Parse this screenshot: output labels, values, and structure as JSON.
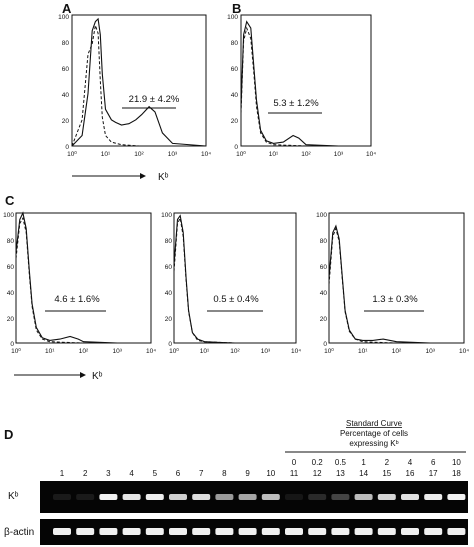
{
  "figure": {
    "panel_A": {
      "letter": "A",
      "y_ticks": [
        "100",
        "80",
        "60",
        "40",
        "20",
        "0"
      ],
      "x_ticks": [
        "10⁰",
        "10¹",
        "10²",
        "10³",
        "10⁴"
      ],
      "gate_label": "21.9 ± 4.2%",
      "axis_label": "Kᵇ"
    },
    "panel_B": {
      "letter": "B",
      "y_ticks": [
        "100",
        "80",
        "60",
        "40",
        "20",
        "0"
      ],
      "x_ticks": [
        "10⁰",
        "10¹",
        "10²",
        "10³",
        "10⁴"
      ],
      "gate_label": "5.3 ± 1.2%"
    },
    "panel_C": {
      "letter": "C",
      "axis_label": "Kᵇ",
      "histograms": [
        {
          "y_ticks": [
            "100",
            "80",
            "60",
            "40",
            "20",
            "0"
          ],
          "x_ticks": [
            "10⁰",
            "10¹",
            "10²",
            "10³",
            "10⁴"
          ],
          "gate_label": "4.6 ± 1.6%"
        },
        {
          "y_ticks": [
            "100",
            "80",
            "60",
            "40",
            "20",
            "0"
          ],
          "x_ticks": [
            "10⁰",
            "10¹",
            "10²",
            "10³",
            "10⁴"
          ],
          "gate_label": "0.5 ± 0.4%"
        },
        {
          "y_ticks": [
            "100",
            "80",
            "60",
            "40",
            "20",
            "0"
          ],
          "x_ticks": [
            "10⁰",
            "10¹",
            "10²",
            "10³",
            "10⁴"
          ],
          "gate_label": "1.3 ± 0.3%"
        }
      ]
    },
    "panel_D": {
      "letter": "D",
      "standard_curve_title": "Standard Curve",
      "standard_curve_sub1": "Percentage of cells",
      "standard_curve_sub2": "expressing Kᵇ",
      "percentages": [
        "0",
        "0.2",
        "0.5",
        "1",
        "2",
        "4",
        "6",
        "10"
      ],
      "lanes": [
        "1",
        "2",
        "3",
        "4",
        "5",
        "6",
        "7",
        "8",
        "9",
        "10",
        "11",
        "12",
        "13",
        "14",
        "15",
        "16",
        "17",
        "18"
      ],
      "kb_row_label": "Kᵇ",
      "actin_row_label": "β-actin"
    }
  },
  "chart_data": [
    {
      "type": "area",
      "panel": "A",
      "x_scale": "log",
      "xlim": [
        1,
        10000
      ],
      "ylim": [
        0,
        100
      ],
      "series": [
        {
          "style": "solid",
          "x": [
            1,
            2,
            3,
            4,
            5,
            6,
            7,
            8,
            10,
            15,
            20,
            30,
            50,
            80,
            120,
            200,
            300,
            500,
            1000,
            10000
          ],
          "y": [
            0,
            8,
            40,
            88,
            95,
            97,
            85,
            55,
            28,
            20,
            18,
            16,
            17,
            20,
            24,
            30,
            26,
            10,
            2,
            0
          ]
        },
        {
          "style": "dashed",
          "x": [
            1,
            2,
            3,
            4,
            5,
            6,
            7,
            8,
            10,
            15,
            30,
            100,
            1000,
            10000
          ],
          "y": [
            0,
            20,
            70,
            78,
            92,
            86,
            50,
            22,
            8,
            3,
            1,
            0,
            0,
            0
          ]
        }
      ]
    },
    {
      "type": "area",
      "panel": "B",
      "x_scale": "log",
      "xlim": [
        1,
        10000
      ],
      "ylim": [
        0,
        100
      ],
      "series": [
        {
          "style": "solid",
          "x": [
            1,
            1.2,
            1.5,
            2,
            2.5,
            3,
            4,
            6,
            10,
            20,
            40,
            60,
            100,
            1000,
            10000
          ],
          "y": [
            30,
            85,
            95,
            90,
            60,
            35,
            12,
            4,
            2,
            3,
            8,
            6,
            1,
            0,
            0
          ]
        },
        {
          "style": "dashed",
          "x": [
            1,
            1.2,
            1.5,
            2,
            2.5,
            3,
            4,
            6,
            10,
            30,
            100,
            10000
          ],
          "y": [
            25,
            80,
            90,
            82,
            55,
            30,
            10,
            3,
            1,
            0.5,
            0,
            0
          ]
        }
      ]
    },
    {
      "type": "area",
      "panel": "C1",
      "x_scale": "log",
      "xlim": [
        1,
        10000
      ],
      "ylim": [
        0,
        100
      ],
      "series": [
        {
          "style": "solid",
          "x": [
            1,
            1.3,
            1.6,
            2,
            2.5,
            3,
            4,
            6,
            10,
            20,
            40,
            70,
            100,
            1000,
            10000
          ],
          "y": [
            70,
            95,
            100,
            88,
            55,
            30,
            12,
            4,
            2,
            3,
            5,
            3,
            1,
            0,
            0
          ]
        },
        {
          "style": "dashed",
          "x": [
            1,
            1.3,
            1.6,
            2,
            2.5,
            3,
            4,
            6,
            10,
            30,
            100,
            10000
          ],
          "y": [
            65,
            92,
            96,
            85,
            52,
            28,
            10,
            3,
            1,
            0.5,
            0,
            0
          ]
        }
      ]
    },
    {
      "type": "area",
      "panel": "C2",
      "x_scale": "log",
      "xlim": [
        1,
        10000
      ],
      "ylim": [
        0,
        100
      ],
      "series": [
        {
          "style": "solid",
          "x": [
            1,
            1.3,
            1.6,
            2,
            2.5,
            3,
            4,
            6,
            10,
            30,
            100,
            10000
          ],
          "y": [
            60,
            95,
            98,
            85,
            50,
            25,
            8,
            3,
            1,
            0.5,
            0,
            0
          ]
        },
        {
          "style": "dashed",
          "x": [
            1,
            1.3,
            1.6,
            2,
            2.5,
            3,
            4,
            6,
            10,
            30,
            100,
            10000
          ],
          "y": [
            55,
            92,
            96,
            82,
            48,
            24,
            8,
            2,
            1,
            0.5,
            0,
            0
          ]
        }
      ]
    },
    {
      "type": "area",
      "panel": "C3",
      "x_scale": "log",
      "xlim": [
        1,
        10000
      ],
      "ylim": [
        0,
        100
      ],
      "series": [
        {
          "style": "solid",
          "x": [
            1,
            1.3,
            1.6,
            2,
            2.5,
            3,
            4,
            6,
            10,
            20,
            40,
            100,
            1000,
            10000
          ],
          "y": [
            50,
            85,
            90,
            80,
            50,
            25,
            10,
            3,
            2,
            2,
            3,
            1,
            0,
            0
          ]
        },
        {
          "style": "dashed",
          "x": [
            1,
            1.3,
            1.6,
            2,
            2.5,
            3,
            4,
            6,
            10,
            30,
            100,
            10000
          ],
          "y": [
            45,
            82,
            88,
            78,
            48,
            24,
            9,
            3,
            1,
            0.5,
            0,
            0
          ]
        }
      ]
    }
  ]
}
